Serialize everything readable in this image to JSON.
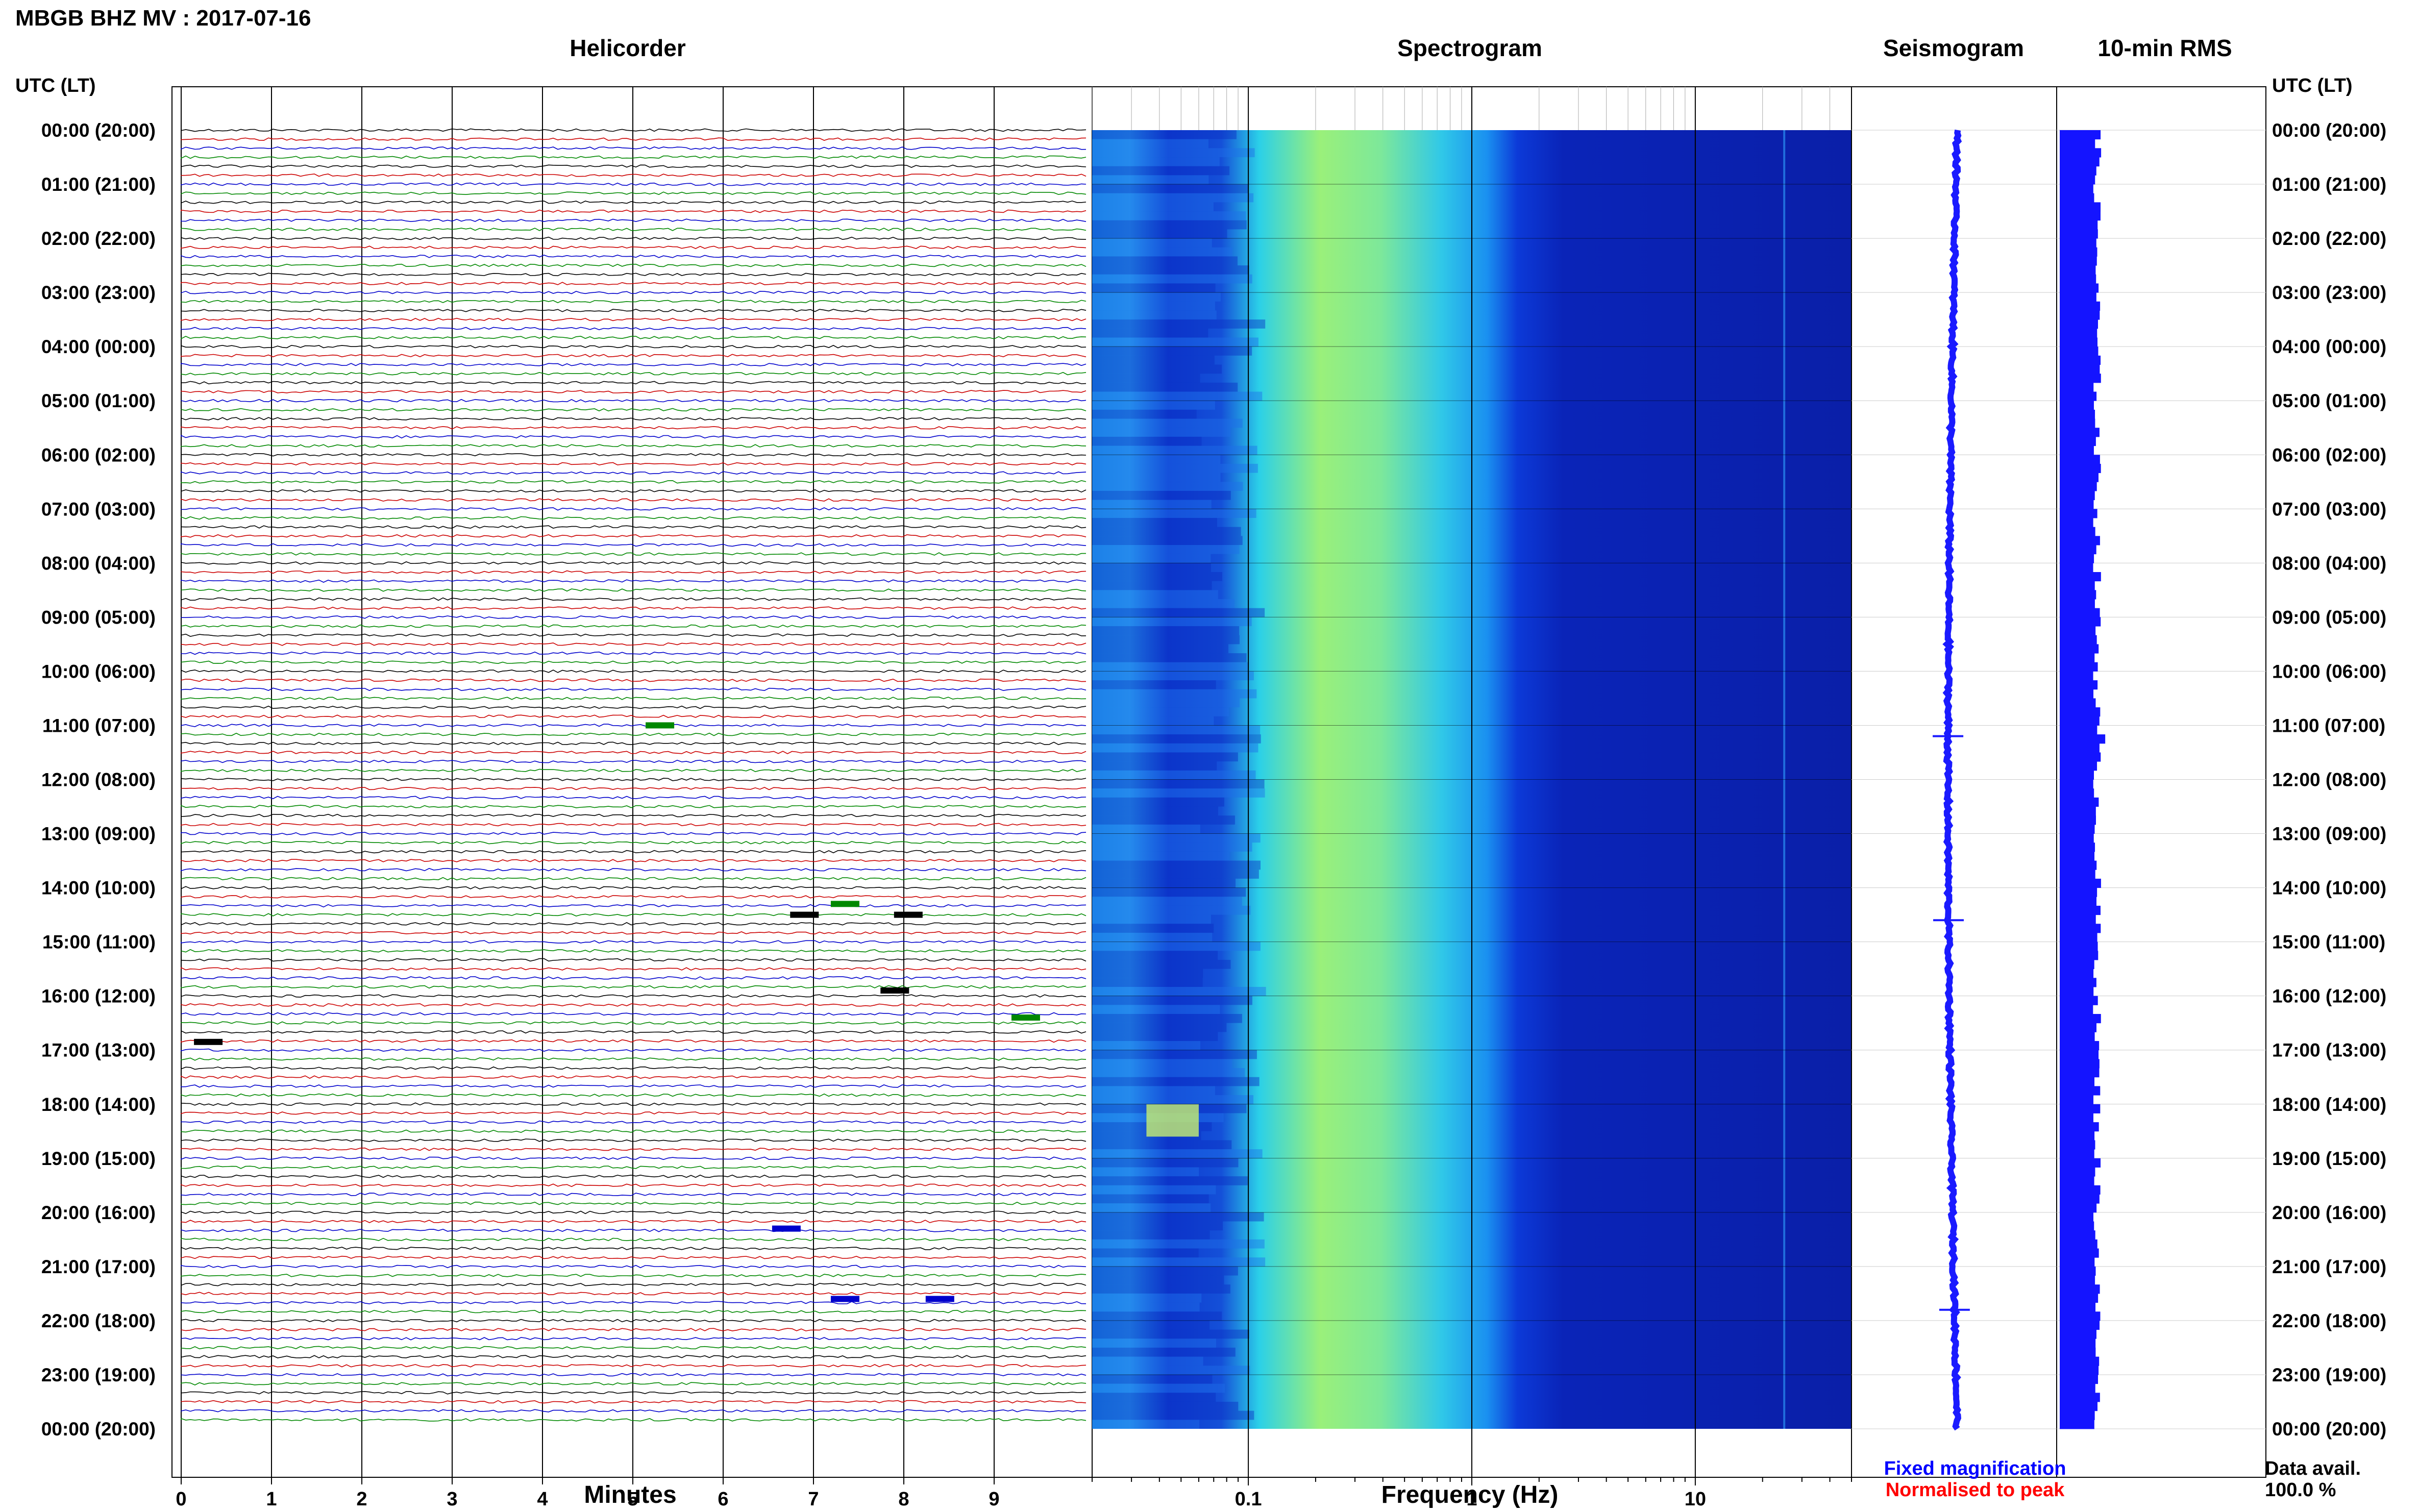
{
  "header": {
    "title": "MBGB BHZ MV : 2017-07-16"
  },
  "panels": {
    "helicorder": "Helicorder",
    "spectrogram": "Spectrogram",
    "seismogram": "Seismogram",
    "rms": "10-min RMS"
  },
  "time_axis_label": "UTC (LT)",
  "hour_labels": [
    "00:00 (20:00)",
    "01:00 (21:00)",
    "02:00 (22:00)",
    "03:00 (23:00)",
    "04:00 (00:00)",
    "05:00 (01:00)",
    "06:00 (02:00)",
    "07:00 (03:00)",
    "08:00 (04:00)",
    "09:00 (05:00)",
    "10:00 (06:00)",
    "11:00 (07:00)",
    "12:00 (08:00)",
    "13:00 (09:00)",
    "14:00 (10:00)",
    "15:00 (11:00)",
    "16:00 (12:00)",
    "17:00 (13:00)",
    "18:00 (14:00)",
    "19:00 (15:00)",
    "20:00 (16:00)",
    "21:00 (17:00)",
    "22:00 (18:00)",
    "23:00 (19:00)",
    "00:00 (20:00)"
  ],
  "footer": {
    "minutes_label": "Minutes",
    "frequency_label": "Frequency (Hz)",
    "fixed_magnification": "Fixed magnification",
    "normalised_to_peak": "Normalised to peak",
    "data_avail_label": "Data avail.",
    "data_avail_value": "100.0 %"
  },
  "colors": {
    "trace_black": "#000000",
    "trace_red": "#cc0000",
    "trace_blue": "#0000cc",
    "trace_green": "#008800",
    "rms_fill": "#1414ff",
    "seismogram": "#1a1aff",
    "fixed_magnification": "#0000ff",
    "normalised_to_peak": "#ff0000"
  },
  "chart_data": [
    {
      "type": "line",
      "name_panel": "Helicorder",
      "xlabel": "Minutes",
      "x_ticks": [
        0,
        1,
        2,
        3,
        4,
        5,
        6,
        7,
        8,
        9
      ],
      "xlim": [
        0,
        10
      ],
      "rows": 144,
      "row_minutes": 10,
      "trace_color_cycle": [
        "black",
        "red",
        "blue",
        "green"
      ],
      "events": [
        {
          "hour": 11.0,
          "minute": 5.3,
          "color": "green"
        },
        {
          "hour": 14.3,
          "minute": 7.35,
          "color": "green"
        },
        {
          "hour": 14.5,
          "minute": 6.9,
          "color": "black"
        },
        {
          "hour": 14.5,
          "minute": 8.05,
          "color": "black"
        },
        {
          "hour": 15.9,
          "minute": 7.9,
          "color": "black"
        },
        {
          "hour": 16.4,
          "minute": 9.35,
          "color": "green"
        },
        {
          "hour": 16.85,
          "minute": 0.3,
          "color": "black"
        },
        {
          "hour": 20.3,
          "minute": 6.7,
          "color": "blue"
        },
        {
          "hour": 21.6,
          "minute": 7.35,
          "color": "blue"
        },
        {
          "hour": 21.6,
          "minute": 8.4,
          "color": "blue"
        }
      ]
    },
    {
      "type": "heatmap",
      "name_panel": "Spectrogram",
      "xlabel": "Frequency (Hz)",
      "x_scale": "log",
      "xlim": [
        0.02,
        50
      ],
      "x_tick_labels": [
        "0.1",
        "1",
        "10"
      ],
      "x_tick_values": [
        0.1,
        1,
        10
      ],
      "y_range_hours": [
        0,
        24
      ]
    },
    {
      "type": "line",
      "name_panel": "Seismogram",
      "y_range_hours": [
        0,
        24
      ],
      "spikes_hours": [
        11.2,
        14.6,
        21.8
      ]
    },
    {
      "type": "bar",
      "name_panel": "10-min RMS",
      "y_range_hours": [
        0,
        24
      ],
      "bins": 144,
      "relative_level": 0.2,
      "peak_hour": 11.2
    }
  ]
}
